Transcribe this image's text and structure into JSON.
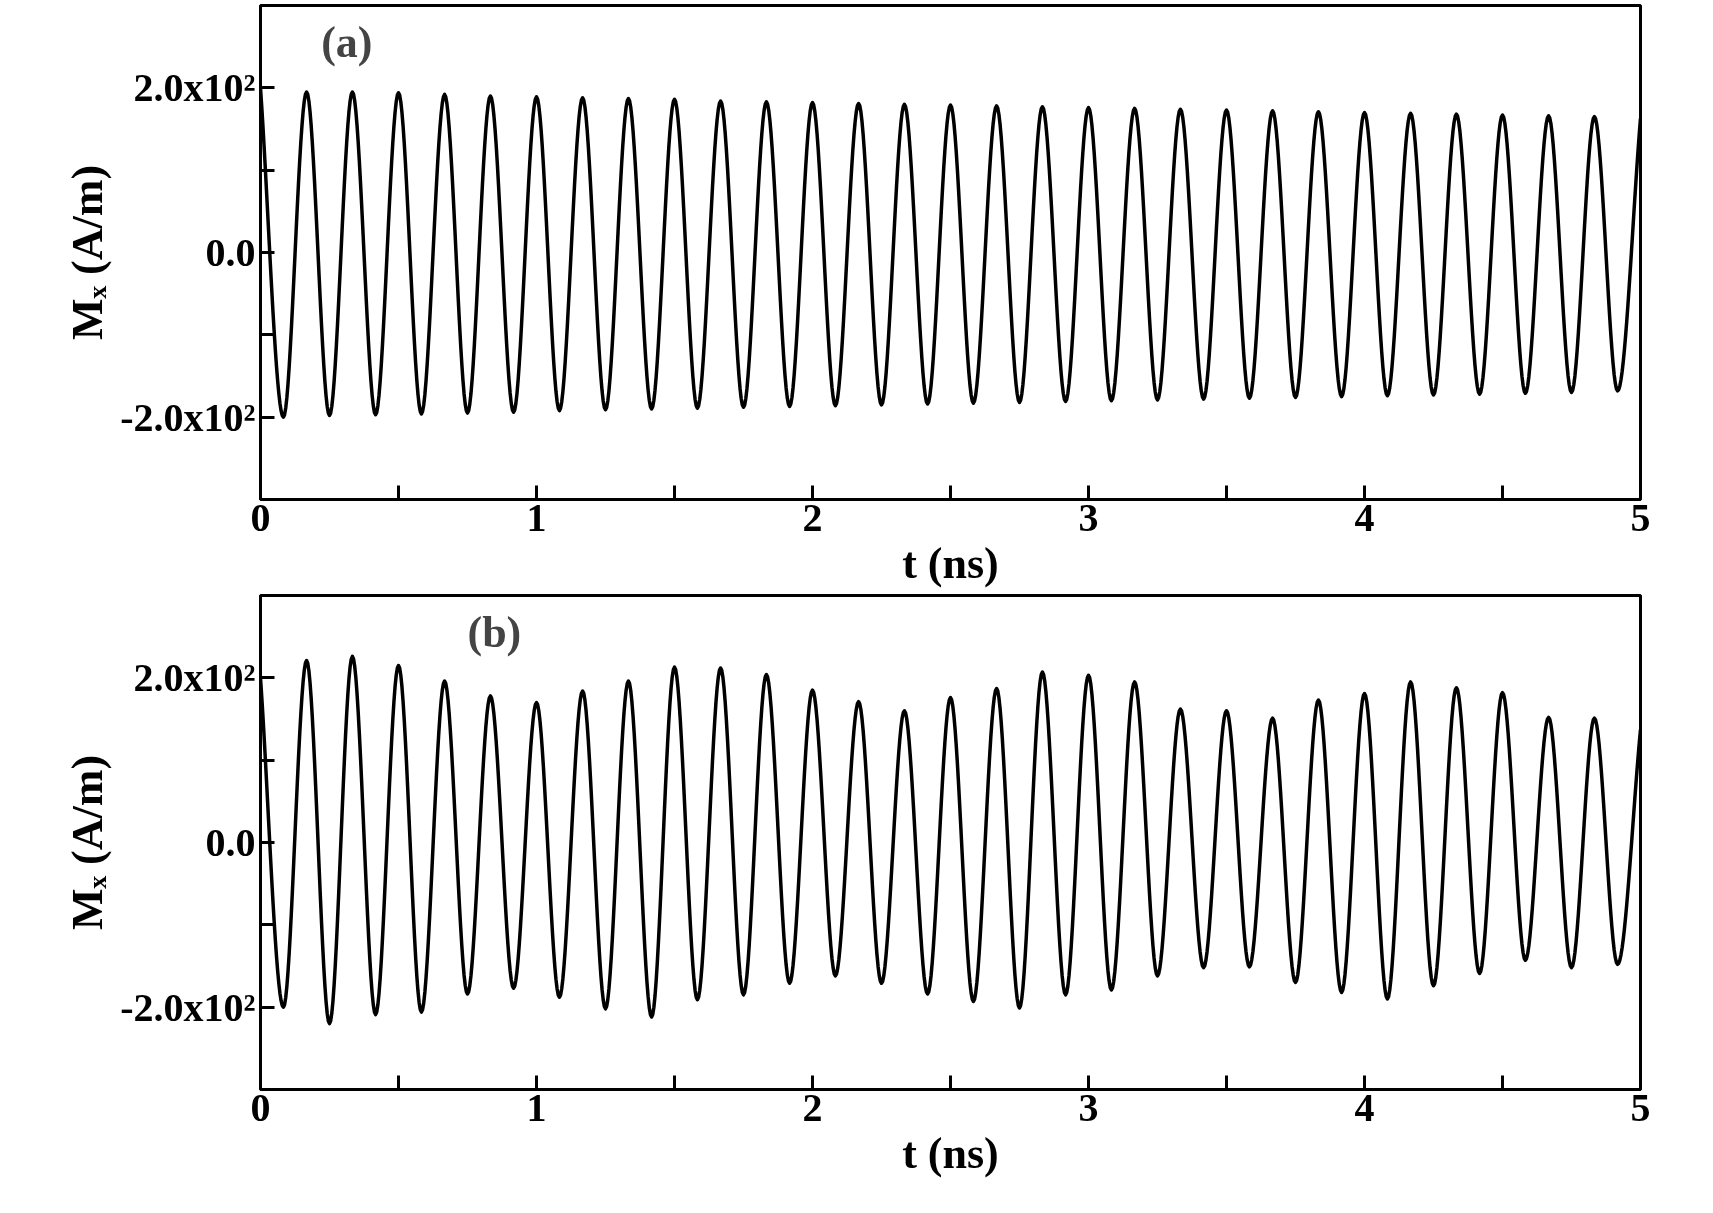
{
  "chart_data": [
    {
      "type": "line",
      "annotations": [
        "(a)"
      ],
      "xlabel": "t (ns)",
      "ylabel": "Mₓ (A/m)",
      "grid": false,
      "marker": "none",
      "line_style": "solid",
      "x": [
        0,
        0.083,
        0.167,
        0.25,
        0.333,
        0.417,
        0.5,
        0.583,
        0.667,
        0.75,
        0.833,
        0.917,
        1,
        1.083,
        1.167,
        1.25,
        1.333,
        1.417,
        1.5,
        1.583,
        1.667,
        1.75,
        1.833,
        1.917,
        2,
        2.083,
        2.167,
        2.25,
        2.333,
        2.417,
        2.5,
        2.583,
        2.667,
        2.75,
        2.833,
        2.917,
        3,
        3.083,
        3.167,
        3.25,
        3.333,
        3.417,
        3.5,
        3.583,
        3.667,
        3.75,
        3.833,
        3.917,
        4,
        4.083,
        4.167,
        4.25,
        4.333,
        4.417,
        4.5,
        4.583,
        4.667,
        4.75,
        4.833,
        4.917,
        5
      ],
      "xlim": [
        0,
        5
      ],
      "xticks": [
        0,
        {
          "value": 0.5,
          "label": null
        },
        1,
        {
          "value": 1.5,
          "label": null
        },
        2,
        {
          "value": 2.5,
          "label": null
        },
        3,
        {
          "value": 3.5,
          "label": null
        },
        4,
        {
          "value": 4.5,
          "label": null
        },
        5
      ],
      "ylim": [
        -300,
        300
      ],
      "yticks": [
        {
          "value": -200,
          "label": "-2.0x10²"
        },
        {
          "value": -100,
          "label": null
        },
        {
          "value": 0,
          "label": "0.0"
        },
        {
          "value": 100,
          "label": null
        },
        {
          "value": 200,
          "label": "2.0x10²"
        }
      ],
      "series": [
        {
          "color": "#000000",
          "values": [
            200,
            -200,
            195,
            -198,
            195,
            -197,
            194,
            -196,
            192,
            -195,
            190,
            -194,
            189,
            -192,
            188,
            -191,
            187,
            -190,
            186,
            -189,
            184,
            -188,
            183,
            -187,
            182,
            -186,
            181,
            -185,
            180,
            -184,
            179,
            -183,
            178,
            -182,
            177,
            -181,
            176,
            -180,
            175,
            -179,
            174,
            -178,
            173,
            -177,
            172,
            -176,
            171,
            -175,
            170,
            -174,
            169,
            -173,
            168,
            -172,
            167,
            -171,
            166,
            -170,
            165,
            -168,
            163
          ]
        }
      ]
    },
    {
      "type": "line",
      "annotations": [
        "(b)"
      ],
      "xlabel": "t (ns)",
      "ylabel": "Mₓ (A/m)",
      "grid": false,
      "marker": "none",
      "line_style": "solid",
      "x": [
        0,
        0.083,
        0.167,
        0.25,
        0.333,
        0.417,
        0.5,
        0.583,
        0.667,
        0.75,
        0.833,
        0.917,
        1,
        1.083,
        1.167,
        1.25,
        1.333,
        1.417,
        1.5,
        1.583,
        1.667,
        1.75,
        1.833,
        1.917,
        2,
        2.083,
        2.167,
        2.25,
        2.333,
        2.417,
        2.5,
        2.583,
        2.667,
        2.75,
        2.833,
        2.917,
        3,
        3.083,
        3.167,
        3.25,
        3.333,
        3.417,
        3.5,
        3.583,
        3.667,
        3.75,
        3.833,
        3.917,
        4,
        4.083,
        4.167,
        4.25,
        4.333,
        4.417,
        4.5,
        4.583,
        4.667,
        4.75,
        4.833,
        4.917,
        5
      ],
      "xlim": [
        0,
        5
      ],
      "xticks": [
        0,
        {
          "value": 0.5,
          "label": null
        },
        1,
        {
          "value": 1.5,
          "label": null
        },
        2,
        {
          "value": 2.5,
          "label": null
        },
        3,
        {
          "value": 3.5,
          "label": null
        },
        4,
        {
          "value": 4.5,
          "label": null
        },
        5
      ],
      "ylim": [
        -300,
        300
      ],
      "yticks": [
        {
          "value": -200,
          "label": "-2.0x10²"
        },
        {
          "value": -100,
          "label": null
        },
        {
          "value": 0,
          "label": "0.0"
        },
        {
          "value": 100,
          "label": null
        },
        {
          "value": 200,
          "label": "2.0x10²"
        }
      ],
      "series": [
        {
          "color": "#000000",
          "values": [
            200,
            -200,
            221,
            -220,
            226,
            -209,
            215,
            -206,
            196,
            -184,
            178,
            -177,
            170,
            -188,
            184,
            -202,
            196,
            -212,
            213,
            -191,
            212,
            -185,
            204,
            -171,
            185,
            -162,
            171,
            -171,
            160,
            -184,
            176,
            -193,
            187,
            -201,
            207,
            -185,
            203,
            -179,
            195,
            -162,
            162,
            -152,
            160,
            -151,
            151,
            -170,
            173,
            -182,
            181,
            -190,
            195,
            -174,
            188,
            -159,
            182,
            -143,
            152,
            -152,
            151,
            -148,
            137
          ]
        }
      ]
    }
  ]
}
